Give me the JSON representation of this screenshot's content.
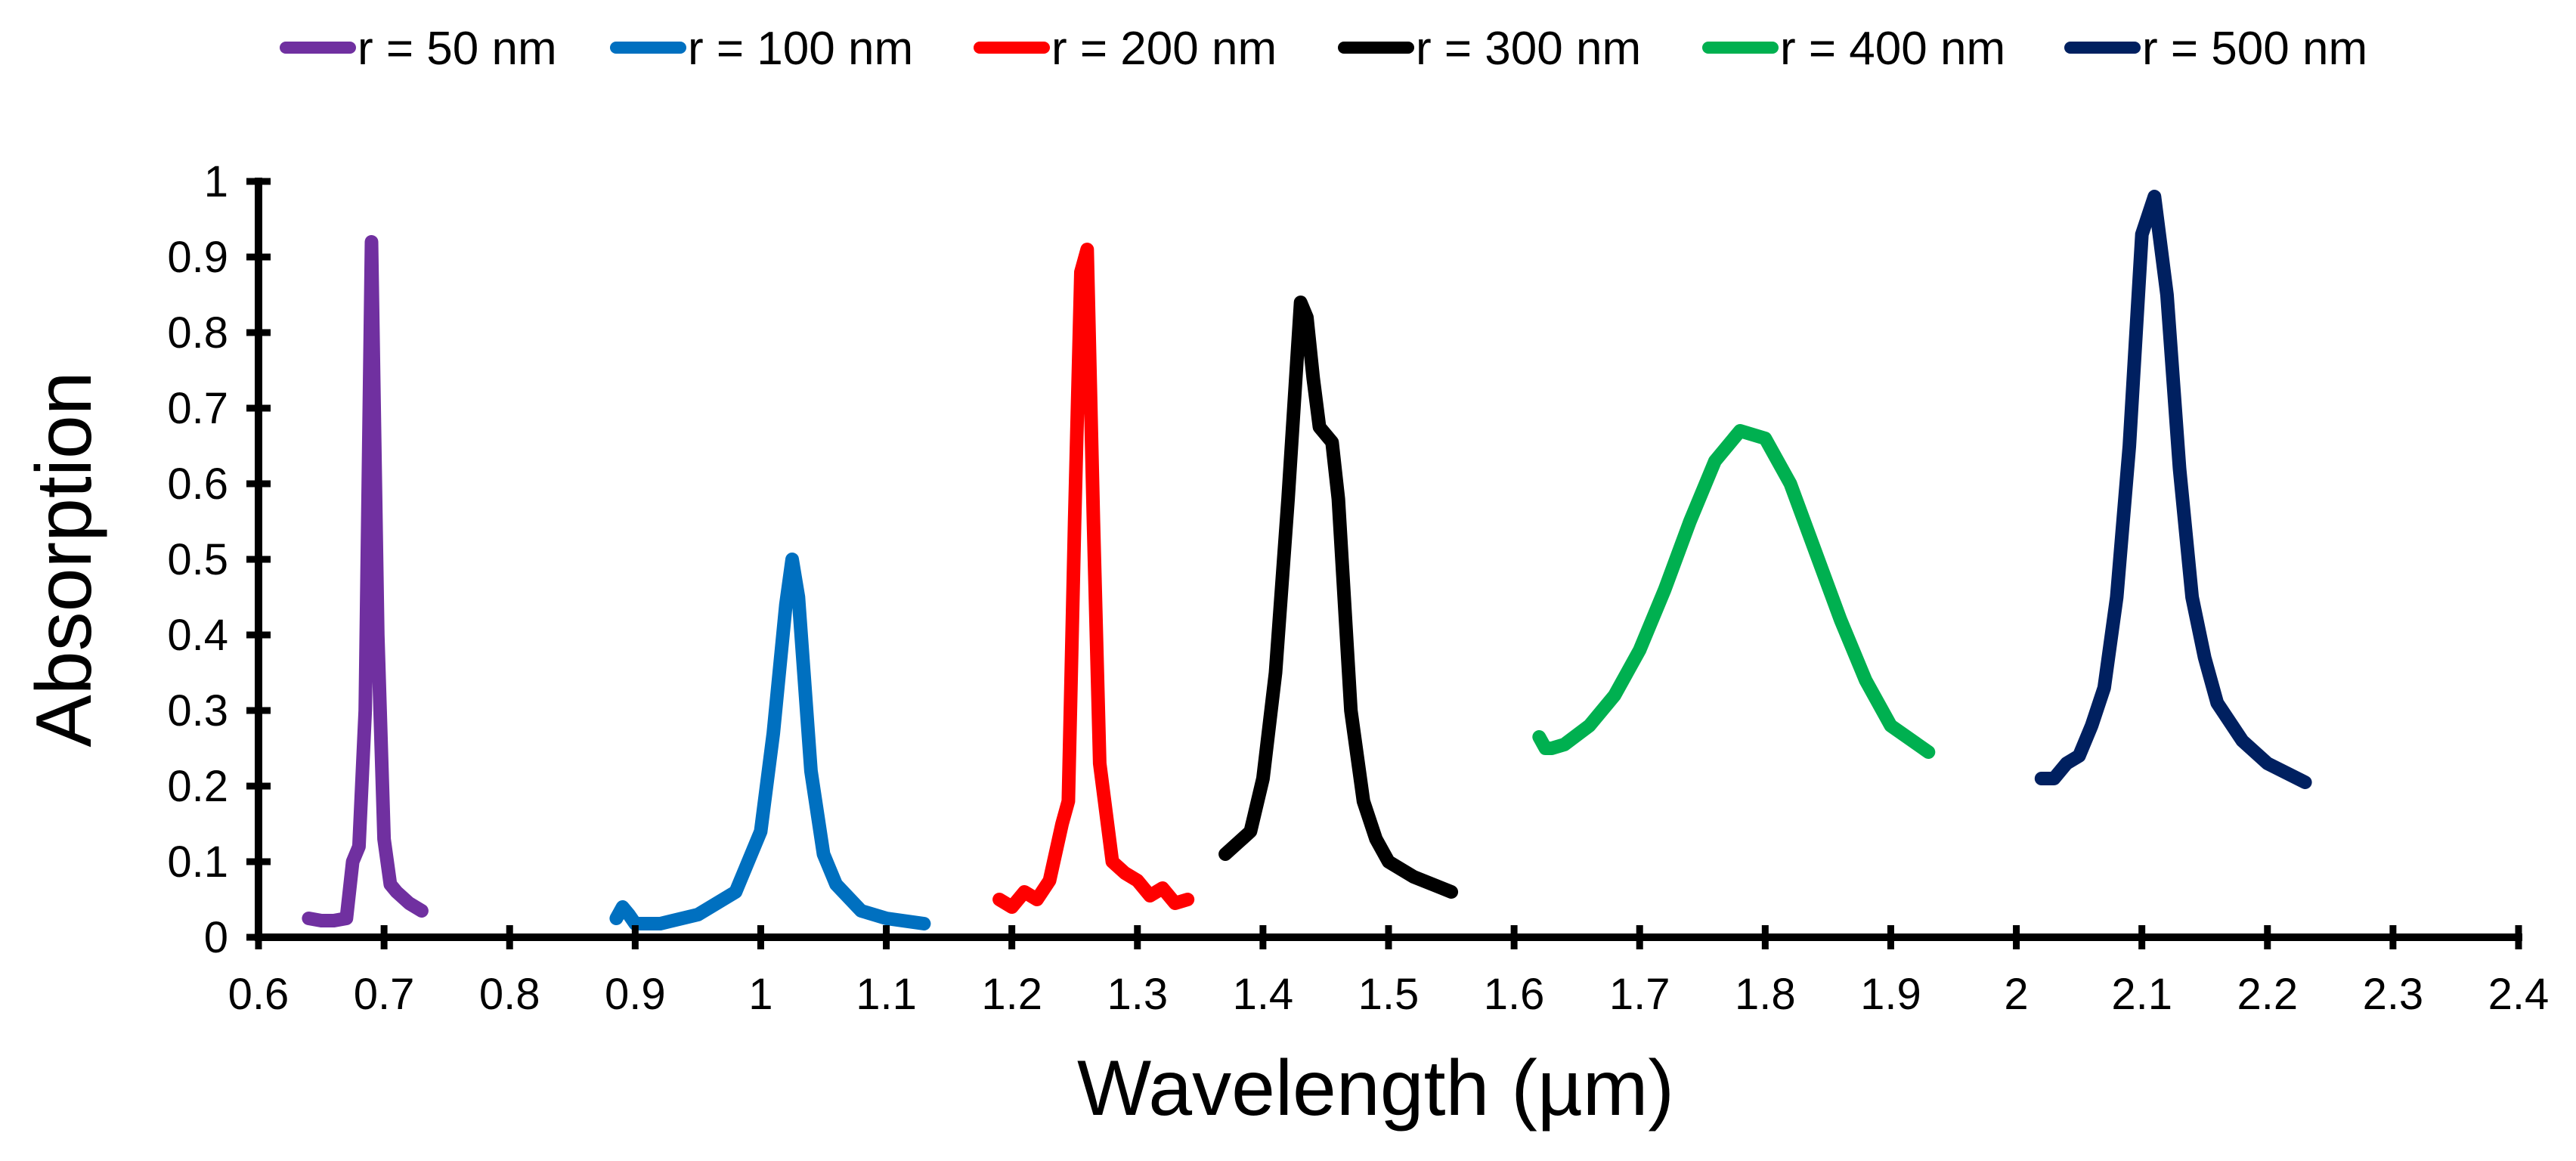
{
  "chart_data": {
    "type": "line",
    "title": "",
    "xlabel": "Wavelength (µm)",
    "ylabel": "Absorption",
    "xlim": [
      0.6,
      2.4
    ],
    "ylim": [
      0,
      1
    ],
    "x_ticks": [
      "0.6",
      "0.7",
      "0.8",
      "0.9",
      "1",
      "1.1",
      "1.2",
      "1.3",
      "1.4",
      "1.5",
      "1.6",
      "1.7",
      "1.8",
      "1.9",
      "2",
      "2.1",
      "2.2",
      "2.3",
      "2.4"
    ],
    "y_ticks": [
      "0",
      "0.1",
      "0.2",
      "0.3",
      "0.4",
      "0.5",
      "0.6",
      "0.7",
      "0.8",
      "0.9",
      "1"
    ],
    "grid": false,
    "legend_position": "top",
    "series": [
      {
        "name": "r = 50 nm",
        "color": "#7030A0",
        "x": [
          0.64,
          0.65,
          0.66,
          0.67,
          0.675,
          0.68,
          0.685,
          0.69,
          0.695,
          0.7,
          0.705,
          0.71,
          0.72,
          0.73
        ],
        "y": [
          0.025,
          0.022,
          0.022,
          0.025,
          0.1,
          0.12,
          0.3,
          0.92,
          0.4,
          0.13,
          0.07,
          0.06,
          0.045,
          0.035
        ]
      },
      {
        "name": "r = 100 nm",
        "color": "#0070C0",
        "x": [
          0.885,
          0.89,
          0.895,
          0.9,
          0.92,
          0.95,
          0.98,
          1.0,
          1.01,
          1.02,
          1.025,
          1.03,
          1.04,
          1.05,
          1.06,
          1.08,
          1.1,
          1.13
        ],
        "y": [
          0.025,
          0.04,
          0.03,
          0.018,
          0.018,
          0.03,
          0.06,
          0.14,
          0.27,
          0.44,
          0.5,
          0.45,
          0.22,
          0.11,
          0.07,
          0.035,
          0.025,
          0.018
        ]
      },
      {
        "name": "r = 200 nm",
        "color": "#FF0000",
        "x": [
          1.19,
          1.2,
          1.21,
          1.22,
          1.23,
          1.24,
          1.245,
          1.25,
          1.255,
          1.26,
          1.265,
          1.27,
          1.28,
          1.29,
          1.3,
          1.31,
          1.32,
          1.33,
          1.34
        ],
        "y": [
          0.05,
          0.04,
          0.06,
          0.05,
          0.075,
          0.15,
          0.18,
          0.55,
          0.88,
          0.91,
          0.55,
          0.23,
          0.1,
          0.085,
          0.075,
          0.055,
          0.065,
          0.045,
          0.05
        ]
      },
      {
        "name": "r = 300 nm",
        "color": "#000000",
        "x": [
          1.37,
          1.38,
          1.39,
          1.4,
          1.41,
          1.42,
          1.43,
          1.435,
          1.44,
          1.445,
          1.455,
          1.46,
          1.47,
          1.48,
          1.49,
          1.5,
          1.52,
          1.55
        ],
        "y": [
          0.11,
          0.125,
          0.14,
          0.21,
          0.35,
          0.58,
          0.84,
          0.82,
          0.74,
          0.675,
          0.655,
          0.58,
          0.3,
          0.18,
          0.13,
          0.1,
          0.08,
          0.06
        ]
      },
      {
        "name": "r = 400 nm",
        "color": "#00B050",
        "x": [
          1.62,
          1.625,
          1.63,
          1.64,
          1.66,
          1.68,
          1.7,
          1.72,
          1.74,
          1.76,
          1.78,
          1.8,
          1.82,
          1.84,
          1.86,
          1.88,
          1.9,
          1.93
        ],
        "y": [
          0.265,
          0.25,
          0.25,
          0.255,
          0.28,
          0.32,
          0.38,
          0.46,
          0.55,
          0.63,
          0.67,
          0.66,
          0.6,
          0.51,
          0.42,
          0.34,
          0.28,
          0.245
        ]
      },
      {
        "name": "r = 500  nm",
        "color": "#002060",
        "x": [
          2.02,
          2.03,
          2.04,
          2.05,
          2.06,
          2.07,
          2.08,
          2.09,
          2.1,
          2.11,
          2.12,
          2.13,
          2.14,
          2.15,
          2.16,
          2.18,
          2.2,
          2.23
        ],
        "y": [
          0.21,
          0.21,
          0.23,
          0.24,
          0.28,
          0.33,
          0.45,
          0.65,
          0.93,
          0.98,
          0.85,
          0.62,
          0.45,
          0.37,
          0.31,
          0.26,
          0.23,
          0.205
        ]
      }
    ]
  }
}
